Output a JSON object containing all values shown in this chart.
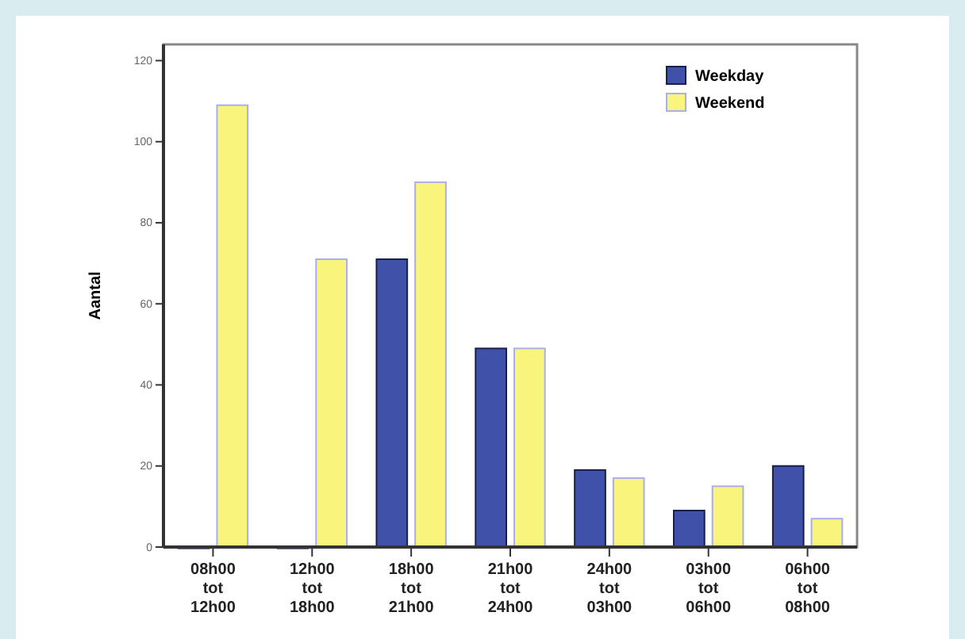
{
  "chart_data": {
    "type": "bar",
    "ylabel": "Aantal",
    "categories": [
      "08h00 tot 12h00",
      "12h00 tot 18h00",
      "18h00 tot 21h00",
      "21h00 tot 24h00",
      "24h00 tot 03h00",
      "03h00 tot 06h00",
      "06h00 tot 08h00"
    ],
    "series": [
      {
        "name": "Weekday",
        "color": "#3f51a8",
        "values": [
          0,
          0,
          71,
          49,
          19,
          9,
          20
        ]
      },
      {
        "name": "Weekend",
        "color": "#f8f47c",
        "values": [
          109,
          71,
          90,
          49,
          17,
          15,
          7
        ]
      }
    ],
    "ylim": [
      0,
      124
    ],
    "yticks": [
      0,
      20,
      40,
      60,
      80,
      100,
      120
    ],
    "grid": false,
    "legend": "top right"
  }
}
